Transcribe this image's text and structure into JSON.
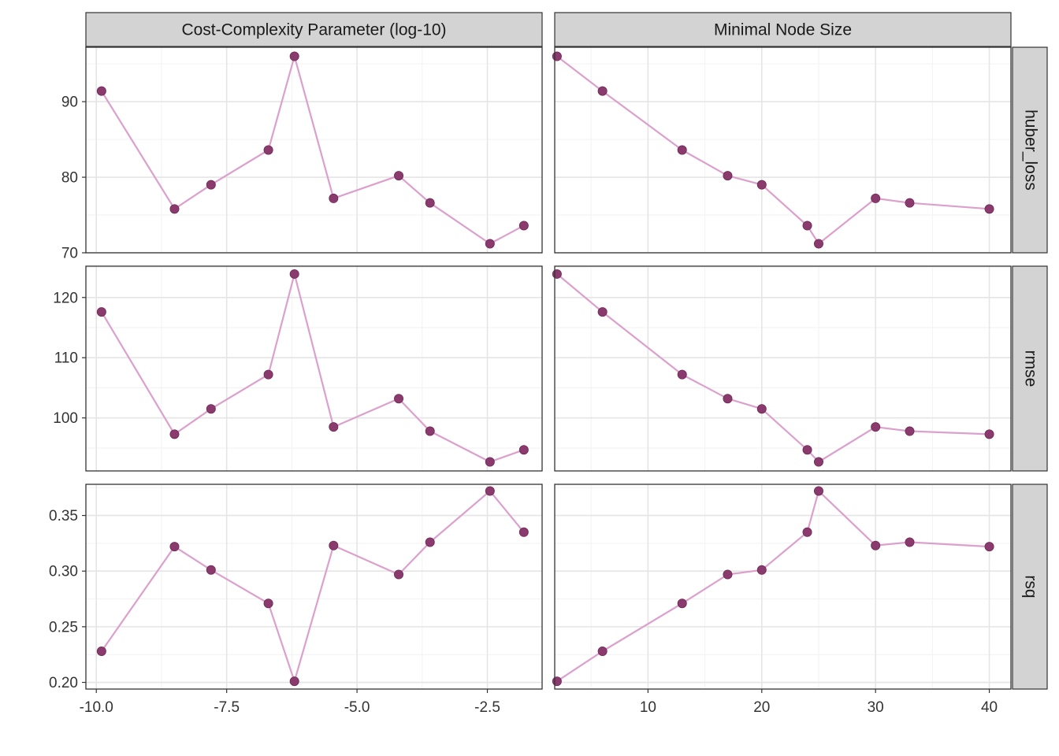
{
  "chart_data": {
    "type": "line",
    "layout": "facet_grid",
    "colors": {
      "line": "#dca0cc",
      "point": "#8b3a6e",
      "strip_fill": "#d3d3d3",
      "grid_major": "#e5e5e5",
      "grid_minor": "#f2f2f2",
      "border": "#333333"
    },
    "columns": [
      {
        "label": "Cost-Complexity Parameter (log-10)",
        "xlim": [
          -10.2,
          -1.45
        ],
        "xticks": [
          -10,
          -7.5,
          -5,
          -2.5
        ],
        "xtick_labels": [
          "-10.0",
          "-7.5",
          "-5.0",
          "-2.5"
        ],
        "xminor": [
          -8.75,
          -6.25,
          -3.75,
          -1.25
        ],
        "x": [
          -9.9,
          -8.5,
          -7.8,
          -6.7,
          -6.2,
          -5.45,
          -4.2,
          -3.6,
          -2.45,
          -1.8
        ]
      },
      {
        "label": "Minimal Node Size",
        "xlim": [
          1.8,
          41.9
        ],
        "xticks": [
          10,
          20,
          30,
          40
        ],
        "xtick_labels": [
          "10",
          "20",
          "30",
          "40"
        ],
        "xminor": [
          5,
          15,
          25,
          35
        ],
        "x": [
          2,
          6,
          13,
          17,
          20,
          24,
          25,
          30,
          33,
          40
        ]
      }
    ],
    "rows": [
      {
        "label": "huber_loss",
        "ylim": [
          70,
          97.2
        ],
        "yticks": [
          70,
          80,
          90
        ],
        "ytick_labels": [
          "70",
          "80",
          "90"
        ],
        "yminor": [
          75,
          85,
          95
        ],
        "y": [
          [
            91.4,
            75.8,
            79.0,
            83.6,
            96.0,
            77.2,
            80.2,
            76.6,
            71.2,
            73.6
          ],
          [
            96.0,
            91.4,
            83.6,
            80.2,
            79.0,
            73.6,
            71.2,
            77.2,
            76.6,
            75.8
          ]
        ]
      },
      {
        "label": "rmse",
        "ylim": [
          91.2,
          125.2
        ],
        "yticks": [
          100,
          110,
          120
        ],
        "ytick_labels": [
          "100",
          "110",
          "120"
        ],
        "yminor": [
          95,
          105,
          115,
          125
        ],
        "y": [
          [
            117.6,
            97.3,
            101.5,
            107.2,
            123.9,
            98.5,
            103.2,
            97.8,
            92.7,
            94.7
          ],
          [
            123.9,
            117.6,
            107.2,
            103.2,
            101.5,
            94.7,
            92.7,
            98.5,
            97.8,
            97.3
          ]
        ]
      },
      {
        "label": "rsq",
        "ylim": [
          0.194,
          0.378
        ],
        "yticks": [
          0.2,
          0.25,
          0.3,
          0.35
        ],
        "ytick_labels": [
          "0.20",
          "0.25",
          "0.30",
          "0.35"
        ],
        "yminor": [
          0.225,
          0.275,
          0.325,
          0.375
        ],
        "y": [
          [
            0.228,
            0.322,
            0.301,
            0.271,
            0.201,
            0.323,
            0.297,
            0.326,
            0.372,
            0.335
          ],
          [
            0.201,
            0.228,
            0.271,
            0.297,
            0.301,
            0.335,
            0.372,
            0.323,
            0.326,
            0.322
          ]
        ]
      }
    ]
  }
}
